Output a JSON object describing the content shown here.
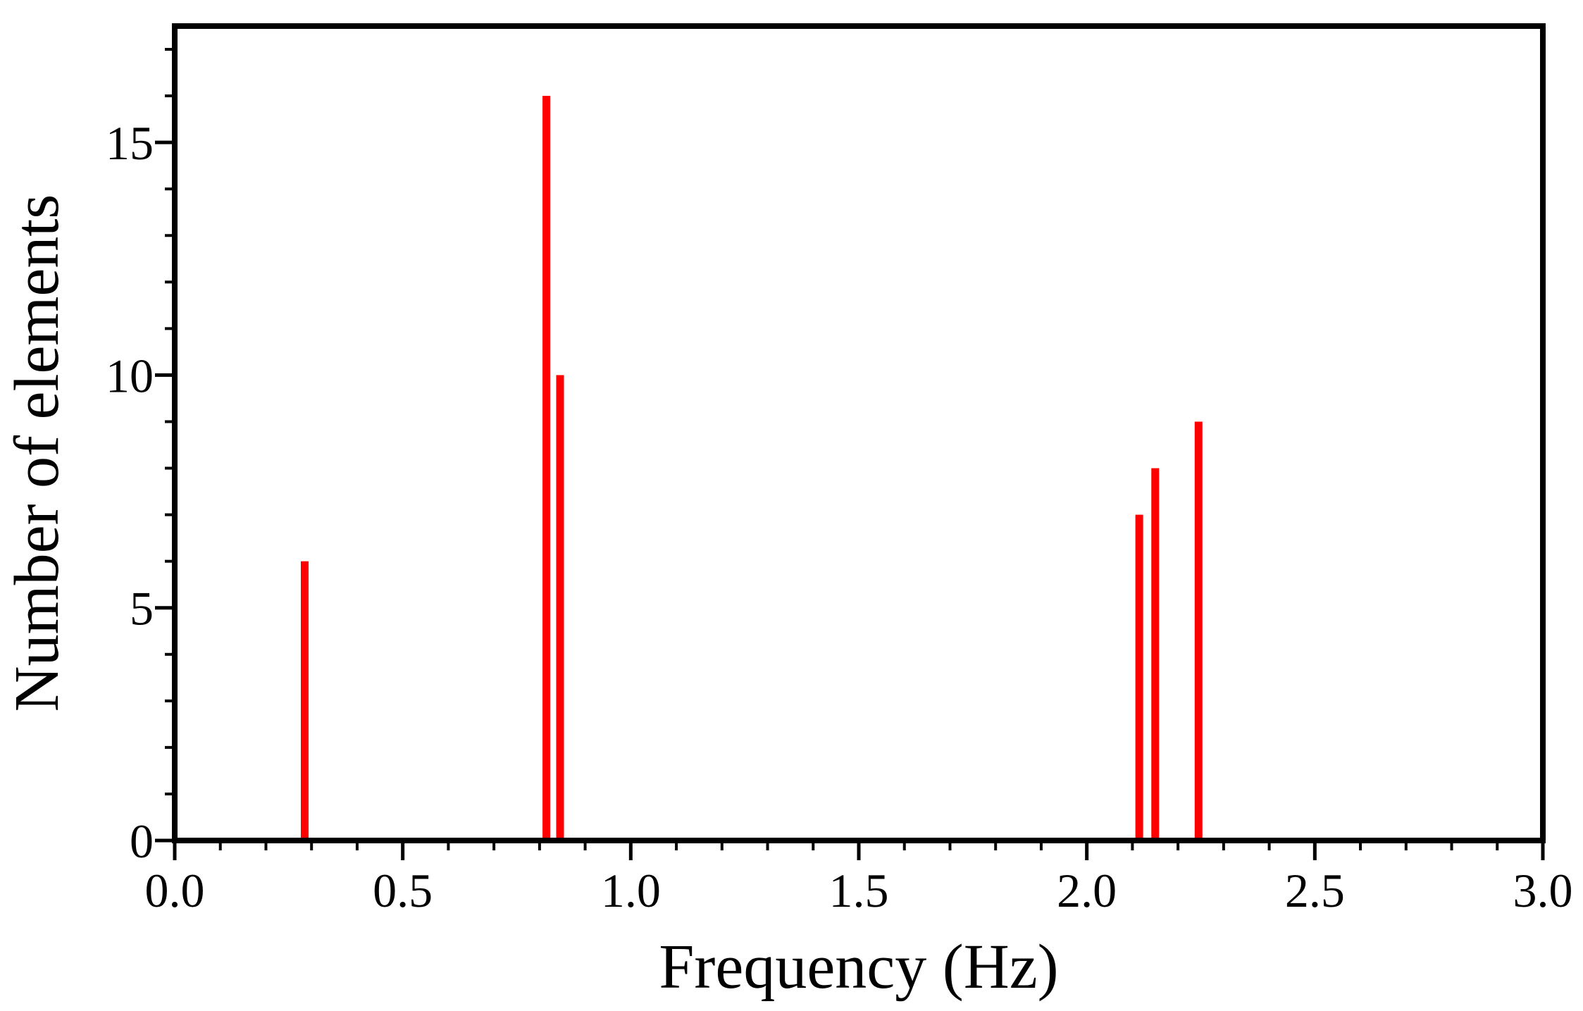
{
  "chart_data": {
    "type": "bar",
    "title": "",
    "xlabel": "Frequency (Hz)",
    "ylabel": "Number of elements",
    "xlim": [
      0,
      3
    ],
    "ylim": [
      0,
      17.5
    ],
    "x_ticks": [
      {
        "value": 0.0,
        "label": "0.0"
      },
      {
        "value": 0.5,
        "label": "0.5"
      },
      {
        "value": 1.0,
        "label": "1.0"
      },
      {
        "value": 1.5,
        "label": "1.5"
      },
      {
        "value": 2.0,
        "label": "2.0"
      },
      {
        "value": 2.5,
        "label": "2.5"
      },
      {
        "value": 3.0,
        "label": "3.0"
      }
    ],
    "y_ticks": [
      {
        "value": 0,
        "label": "0"
      },
      {
        "value": 5,
        "label": "5"
      },
      {
        "value": 10,
        "label": "10"
      },
      {
        "value": 15,
        "label": "15"
      }
    ],
    "x_minor_step": 0.1,
    "y_minor_step": 1,
    "bar_color": "#ff0000",
    "grid": false,
    "legend": "none",
    "bars": [
      {
        "x": 0.285,
        "value": 6
      },
      {
        "x": 0.815,
        "value": 16
      },
      {
        "x": 0.845,
        "value": 10
      },
      {
        "x": 2.115,
        "value": 7
      },
      {
        "x": 2.15,
        "value": 8
      },
      {
        "x": 2.245,
        "value": 9
      }
    ]
  }
}
